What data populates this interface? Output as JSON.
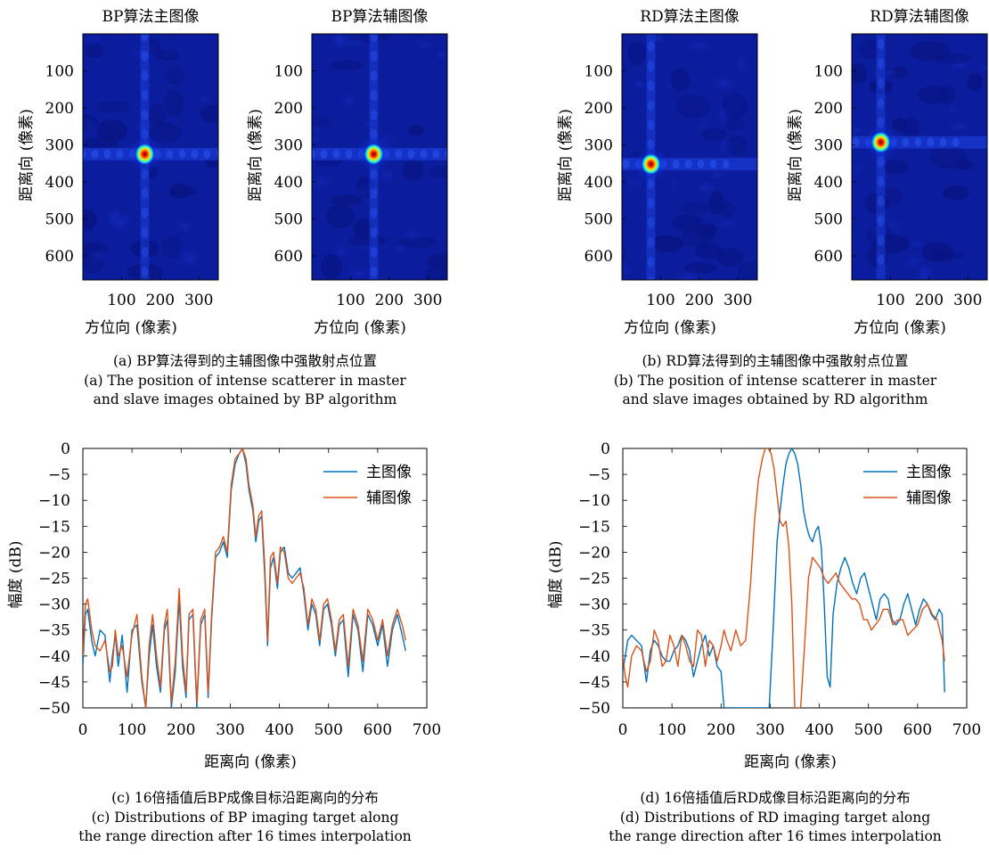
{
  "panels": {
    "a": {
      "images": [
        {
          "title": "BP算法主图像",
          "xlabel": "方位向 (像素)",
          "ylabel": "距离向 (像素)",
          "yticks": [
            "100",
            "200",
            "300",
            "400",
            "500",
            "600"
          ],
          "xticks": [
            "100",
            "200",
            "300"
          ],
          "spot": {
            "x": 160,
            "y": 325
          }
        },
        {
          "title": "BP算法辅图像",
          "xlabel": "方位向 (像素)",
          "ylabel": "距离向 (像素)",
          "yticks": [
            "100",
            "200",
            "300",
            "400",
            "500",
            "600"
          ],
          "xticks": [
            "100",
            "200",
            "300"
          ],
          "spot": {
            "x": 160,
            "y": 325
          }
        }
      ],
      "caption_cn": "(a) BP算法得到的主辅图像中强散射点位置",
      "caption_en1": "(a) The position of intense scatterer in master",
      "caption_en2": "and slave images obtained by BP algorithm"
    },
    "b": {
      "images": [
        {
          "title": "RD算法主图像",
          "xlabel": "方位向 (像素)",
          "ylabel": "距离向 (像素)",
          "yticks": [
            "100",
            "200",
            "300",
            "400",
            "500",
            "600"
          ],
          "xticks": [
            "100",
            "200",
            "300"
          ],
          "spot": {
            "x": 75,
            "y": 352
          }
        },
        {
          "title": "RD算法辅图像",
          "xlabel": "方位向 (像素)",
          "ylabel": "距离向 (像素)",
          "yticks": [
            "100",
            "200",
            "300",
            "400",
            "500",
            "600"
          ],
          "xticks": [
            "100",
            "200",
            "300"
          ],
          "spot": {
            "x": 75,
            "y": 293
          }
        }
      ],
      "caption_cn": "(b) RD算法得到的主辅图像中强散射点位置",
      "caption_en1": "(b) The position of intense scatterer in master",
      "caption_en2": "and slave images obtained by RD algorithm"
    },
    "c": {
      "caption_cn": "(c) 16倍插值后BP成像目标沿距离向的分布",
      "caption_en1": "(c) Distributions of BP imaging target along",
      "caption_en2": "the range direction after 16 times interpolation"
    },
    "d": {
      "caption_cn": "(d) 16倍插值后RD成像目标沿距离向的分布",
      "caption_en1": "(d) Distributions of RD imaging target along",
      "caption_en2": "the range direction after 16 times interpolation"
    }
  },
  "chart_data": [
    {
      "type": "heatmap",
      "title": "BP算法主图像",
      "xlabel": "方位向 (像素)",
      "ylabel": "距离向 (像素)",
      "xlim": [
        0,
        350
      ],
      "ylim": [
        0,
        665
      ],
      "peak": {
        "x": 160,
        "y": 325
      },
      "colormap": "jet"
    },
    {
      "type": "heatmap",
      "title": "BP算法辅图像",
      "xlabel": "方位向 (像素)",
      "ylabel": "距离向 (像素)",
      "xlim": [
        0,
        350
      ],
      "ylim": [
        0,
        665
      ],
      "peak": {
        "x": 160,
        "y": 325
      },
      "colormap": "jet"
    },
    {
      "type": "heatmap",
      "title": "RD算法主图像",
      "xlabel": "方位向 (像素)",
      "ylabel": "距离向 (像素)",
      "xlim": [
        0,
        350
      ],
      "ylim": [
        0,
        665
      ],
      "peak": {
        "x": 75,
        "y": 352
      },
      "colormap": "jet"
    },
    {
      "type": "heatmap",
      "title": "RD算法辅图像",
      "xlabel": "方位向 (像素)",
      "ylabel": "距离向 (像素)",
      "xlim": [
        0,
        350
      ],
      "ylim": [
        0,
        665
      ],
      "peak": {
        "x": 75,
        "y": 293
      },
      "colormap": "jet"
    },
    {
      "type": "line",
      "xlabel": "距离向 (像素)",
      "ylabel": "幅度 (dB)",
      "xlim": [
        0,
        700
      ],
      "ylim": [
        -50,
        0
      ],
      "xticks": [
        0,
        100,
        200,
        300,
        400,
        500,
        600,
        700
      ],
      "yticks": [
        0,
        -5,
        -10,
        -15,
        -20,
        -25,
        -30,
        -35,
        -40,
        -45,
        -50
      ],
      "legend": "top-right",
      "series": [
        {
          "name": "主图像",
          "color": "#0072BD",
          "x": [
            0,
            5,
            10,
            18,
            25,
            35,
            45,
            55,
            60,
            66,
            72,
            80,
            90,
            100,
            110,
            120,
            128,
            135,
            142,
            150,
            158,
            166,
            172,
            180,
            188,
            196,
            203,
            210,
            216,
            224,
            232,
            240,
            248,
            255,
            262,
            270,
            278,
            286,
            294,
            302,
            310,
            318,
            325,
            332,
            338,
            346,
            352,
            358,
            364,
            370,
            376,
            382,
            388,
            396,
            402,
            410,
            418,
            426,
            434,
            442,
            450,
            458,
            466,
            474,
            482,
            490,
            498,
            506,
            514,
            522,
            530,
            540,
            550,
            560,
            570,
            580,
            590,
            600,
            610,
            620,
            630,
            640,
            650,
            657
          ],
          "y": [
            -42,
            -32,
            -31,
            -37,
            -40,
            -35,
            -36,
            -45,
            -40,
            -36,
            -42,
            -36,
            -47,
            -35,
            -34,
            -45,
            -50,
            -40,
            -34,
            -42,
            -47,
            -35,
            -33,
            -50,
            -43,
            -29,
            -42,
            -48,
            -33,
            -32,
            -50,
            -34,
            -32,
            -48,
            -33,
            -21,
            -20,
            -18,
            -21,
            -8,
            -3,
            -1,
            0,
            -3,
            -8,
            -12,
            -18,
            -14,
            -13,
            -24,
            -38,
            -23,
            -21,
            -27,
            -20,
            -19,
            -24,
            -25,
            -24,
            -23,
            -28,
            -35,
            -30,
            -32,
            -38,
            -31,
            -30,
            -34,
            -40,
            -34,
            -33,
            -44,
            -32,
            -35,
            -43,
            -32,
            -34,
            -38,
            -34,
            -42,
            -35,
            -32,
            -36,
            -39
          ]
        },
        {
          "name": "辅图像",
          "color": "#D95319",
          "x": [
            0,
            5,
            10,
            18,
            25,
            35,
            45,
            55,
            60,
            66,
            72,
            80,
            90,
            100,
            110,
            120,
            128,
            135,
            142,
            150,
            158,
            166,
            172,
            180,
            188,
            196,
            203,
            210,
            216,
            224,
            232,
            240,
            248,
            255,
            262,
            270,
            278,
            286,
            294,
            302,
            310,
            318,
            325,
            332,
            338,
            346,
            352,
            358,
            364,
            370,
            376,
            382,
            388,
            396,
            402,
            410,
            418,
            426,
            434,
            442,
            450,
            458,
            466,
            474,
            482,
            490,
            498,
            506,
            514,
            522,
            530,
            540,
            550,
            560,
            570,
            580,
            590,
            600,
            610,
            620,
            630,
            640,
            650,
            657
          ],
          "y": [
            -40,
            -30,
            -29,
            -35,
            -38,
            -39,
            -37,
            -43,
            -42,
            -35,
            -40,
            -38,
            -44,
            -36,
            -32,
            -44,
            -50,
            -38,
            -32,
            -40,
            -46,
            -34,
            -31,
            -49,
            -41,
            -27,
            -40,
            -47,
            -32,
            -31,
            -49,
            -33,
            -31,
            -47,
            -32,
            -20,
            -19,
            -17,
            -20,
            -7,
            -2,
            -1,
            0,
            -2,
            -7,
            -11,
            -17,
            -13,
            -12,
            -22,
            -37,
            -21,
            -20,
            -26,
            -19,
            -20,
            -25,
            -26,
            -25,
            -24,
            -27,
            -34,
            -29,
            -31,
            -37,
            -30,
            -29,
            -33,
            -39,
            -33,
            -32,
            -42,
            -31,
            -34,
            -41,
            -31,
            -33,
            -37,
            -33,
            -40,
            -34,
            -31,
            -34,
            -37
          ]
        }
      ]
    },
    {
      "type": "line",
      "xlabel": "距离向 (像素)",
      "ylabel": "幅度 (dB)",
      "xlim": [
        0,
        700
      ],
      "ylim": [
        -50,
        0
      ],
      "xticks": [
        0,
        100,
        200,
        300,
        400,
        500,
        600,
        700
      ],
      "yticks": [
        0,
        -5,
        -10,
        -15,
        -20,
        -25,
        -30,
        -35,
        -40,
        -45,
        -50
      ],
      "legend": "top-right",
      "series": [
        {
          "name": "主图像",
          "color": "#0072BD",
          "x": [
            0,
            5,
            10,
            18,
            28,
            38,
            48,
            56,
            64,
            72,
            80,
            88,
            96,
            104,
            112,
            120,
            128,
            136,
            144,
            152,
            160,
            168,
            176,
            184,
            192,
            200,
            206,
            212,
            220,
            230,
            240,
            250,
            260,
            270,
            280,
            290,
            298,
            306,
            314,
            320,
            326,
            332,
            338,
            344,
            350,
            356,
            362,
            368,
            374,
            380,
            386,
            392,
            398,
            404,
            410,
            416,
            422,
            428,
            436,
            444,
            452,
            460,
            468,
            476,
            484,
            492,
            500,
            508,
            516,
            524,
            532,
            540,
            548,
            556,
            564,
            572,
            580,
            588,
            596,
            604,
            612,
            620,
            628,
            636,
            644,
            650,
            655
          ],
          "y": [
            -43,
            -40,
            -37,
            -36,
            -37,
            -38,
            -45,
            -39,
            -37,
            -38,
            -40,
            -41,
            -41,
            -39,
            -38,
            -36,
            -37,
            -39,
            -44,
            -41,
            -38,
            -36,
            -40,
            -38,
            -42,
            -43,
            -50,
            -50,
            -50,
            -50,
            -50,
            -50,
            -50,
            -50,
            -50,
            -50,
            -50,
            -35,
            -18,
            -12,
            -7,
            -3,
            -1,
            0,
            -1,
            -3,
            -7,
            -12,
            -15,
            -17,
            -18,
            -16,
            -15,
            -19,
            -30,
            -44,
            -46,
            -32,
            -26,
            -23,
            -21,
            -23,
            -26,
            -28,
            -25,
            -24,
            -27,
            -30,
            -33,
            -29,
            -28,
            -29,
            -33,
            -34,
            -33,
            -30,
            -28,
            -31,
            -34,
            -31,
            -29,
            -30,
            -32,
            -33,
            -31,
            -32,
            -47
          ]
        },
        {
          "name": "辅图像",
          "color": "#D95319",
          "x": [
            0,
            5,
            10,
            18,
            28,
            38,
            48,
            56,
            64,
            72,
            80,
            88,
            96,
            104,
            112,
            120,
            128,
            136,
            144,
            152,
            160,
            168,
            176,
            184,
            192,
            200,
            206,
            212,
            220,
            230,
            240,
            250,
            260,
            268,
            276,
            284,
            290,
            296,
            302,
            308,
            314,
            320,
            326,
            332,
            338,
            344,
            350,
            356,
            362,
            370,
            378,
            386,
            394,
            402,
            410,
            418,
            426,
            434,
            442,
            450,
            458,
            466,
            474,
            482,
            490,
            498,
            506,
            514,
            522,
            530,
            540,
            550,
            560,
            570,
            580,
            590,
            600,
            610,
            620,
            630,
            640,
            650,
            655
          ],
          "y": [
            -40,
            -44,
            -46,
            -40,
            -38,
            -39,
            -43,
            -41,
            -35,
            -37,
            -42,
            -41,
            -36,
            -38,
            -42,
            -36,
            -38,
            -41,
            -42,
            -35,
            -36,
            -42,
            -37,
            -38,
            -41,
            -38,
            -35,
            -37,
            -39,
            -35,
            -38,
            -37,
            -26,
            -14,
            -6,
            -2,
            0,
            0,
            -1,
            -4,
            -9,
            -14,
            -15,
            -14,
            -19,
            -30,
            -50,
            -50,
            -50,
            -38,
            -25,
            -21,
            -22,
            -23,
            -25,
            -26,
            -25,
            -24,
            -26,
            -27,
            -28,
            -29,
            -29,
            -30,
            -33,
            -33,
            -35,
            -34,
            -33,
            -31,
            -31,
            -34,
            -33,
            -33,
            -36,
            -35,
            -34,
            -31,
            -30,
            -32,
            -33,
            -37,
            -41
          ]
        }
      ]
    }
  ]
}
